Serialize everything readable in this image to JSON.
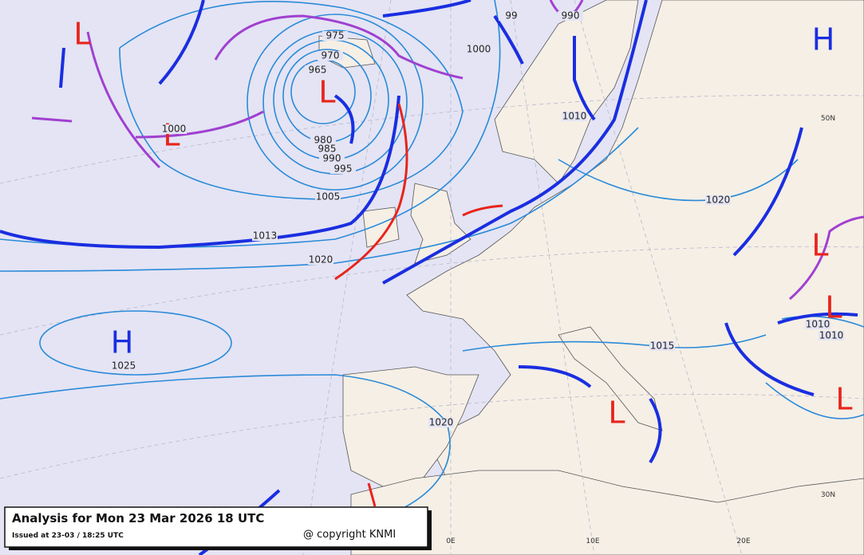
{
  "header": {
    "title": "Analysis for Mon 23 Mar 2026 18 UTC",
    "issued": "Issued at 23-03 / 18:25 UTC",
    "copyright": "@ copyright KNMI"
  },
  "pressure_centers": [
    "L",
    "L",
    "L",
    "H",
    "L",
    "L",
    "H",
    "L",
    "L"
  ],
  "isobar_labels": [
    "99",
    "990",
    "1000",
    "975",
    "970",
    "965",
    "980",
    "985",
    "990",
    "995",
    "1000",
    "1005",
    "1013",
    "1020",
    "1010",
    "1020",
    "1015",
    "1010",
    "1010",
    "1025",
    "1020"
  ],
  "grid_labels": [
    "50N",
    "30N",
    "0E",
    "10E",
    "20E"
  ]
}
